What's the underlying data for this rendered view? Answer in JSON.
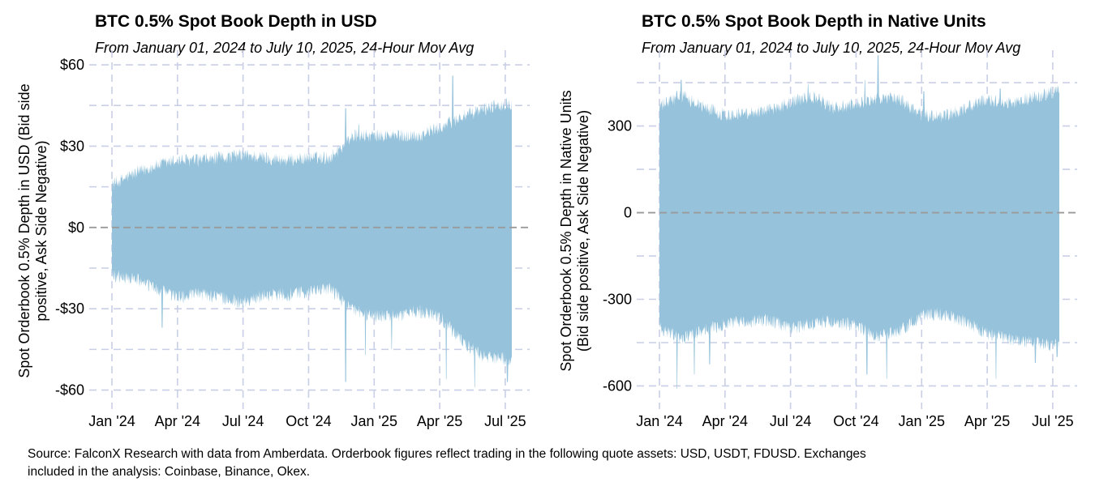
{
  "chart_data": [
    {
      "type": "area",
      "title": "BTC 0.5% Spot Book Depth in USD",
      "subtitle": "From January 01, 2024 to July 10, 2025, 24-Hour Mov Avg",
      "ylabel_line1": "Spot Orderbook 0.5% Depth in USD (Bid side",
      "ylabel_line2": "positive, Ask Side Negative)",
      "xlabel": "",
      "x_ticks": [
        "Jan '24",
        "Apr '24",
        "Jul '24",
        "Oct '24",
        "Jan '25",
        "Apr '25",
        "Jul '25"
      ],
      "y_ticks": [
        {
          "value": 60,
          "label": "$60"
        },
        {
          "value": 30,
          "label": "$30"
        },
        {
          "value": 0,
          "label": "$0"
        },
        {
          "value": -30,
          "label": "-$30"
        },
        {
          "value": -60,
          "label": "-$60"
        }
      ],
      "ylim": [
        -67,
        63
      ],
      "x_range_months": [
        0,
        18.3
      ],
      "series": [
        {
          "name": "Bid side (positive)",
          "color": "#96c3db",
          "x_month": [
            0,
            1,
            2,
            3,
            4,
            5,
            6,
            7,
            8,
            9,
            10,
            11,
            12,
            13,
            14,
            15,
            16,
            17,
            18
          ],
          "values": [
            15,
            19,
            22,
            24,
            24,
            25,
            26,
            25,
            24,
            25,
            25,
            33,
            33,
            33,
            33,
            36,
            40,
            43,
            45
          ],
          "spikes": [
            {
              "x_month": 10.7,
              "value": 44
            },
            {
              "x_month": 11.3,
              "value": 38
            },
            {
              "x_month": 15.6,
              "value": 56
            },
            {
              "x_month": 17.5,
              "value": 46
            }
          ]
        },
        {
          "name": "Ask side (negative)",
          "color": "#96c3db",
          "x_month": [
            0,
            1,
            2,
            3,
            4,
            5,
            6,
            7,
            8,
            9,
            10,
            11,
            12,
            13,
            14,
            15,
            16,
            17,
            18
          ],
          "values": [
            -17,
            -18,
            -22,
            -25,
            -24,
            -25,
            -27,
            -24,
            -24,
            -23,
            -22,
            -30,
            -32,
            -32,
            -30,
            -32,
            -41,
            -47,
            -48
          ],
          "spikes": [
            {
              "x_month": 2.3,
              "value": -37
            },
            {
              "x_month": 10.7,
              "value": -57
            },
            {
              "x_month": 11.6,
              "value": -47
            },
            {
              "x_month": 12.8,
              "value": -45
            },
            {
              "x_month": 15.3,
              "value": -56
            },
            {
              "x_month": 16.6,
              "value": -59
            },
            {
              "x_month": 18.1,
              "value": -57
            }
          ]
        }
      ],
      "reference_line": 0,
      "grid": true
    },
    {
      "type": "area",
      "title": "BTC 0.5% Spot Book Depth in Native Units",
      "subtitle": "From January 01, 2024 to July 10, 2025, 24-Hour Mov Avg",
      "ylabel_line1": "Spot Orderbook 0.5% Depth in Native Units",
      "ylabel_line2": "(Bid side positive, Ask Side Negative)",
      "xlabel": "",
      "x_ticks": [
        "Jan '24",
        "Apr '24",
        "Jul '24",
        "Oct '24",
        "Jan '25",
        "Apr '25",
        "Jul '25"
      ],
      "y_ticks": [
        {
          "value": 300,
          "label": "300"
        },
        {
          "value": 0,
          "label": "0"
        },
        {
          "value": -300,
          "label": "-300"
        },
        {
          "value": -600,
          "label": "-600"
        }
      ],
      "ylim": [
        -680,
        540
      ],
      "x_range_months": [
        0,
        18.3
      ],
      "series": [
        {
          "name": "Bid side (positive)",
          "color": "#96c3db",
          "x_month": [
            0,
            1,
            2,
            3,
            4,
            5,
            6,
            7,
            8,
            9,
            10,
            11,
            12,
            13,
            14,
            15,
            16,
            17,
            18
          ],
          "values": [
            360,
            400,
            360,
            330,
            340,
            350,
            375,
            395,
            355,
            370,
            390,
            385,
            330,
            325,
            355,
            385,
            370,
            390,
            410
          ],
          "spikes": [
            {
              "x_month": 1.0,
              "value": 460
            },
            {
              "x_month": 6.8,
              "value": 445
            },
            {
              "x_month": 9.4,
              "value": 460
            },
            {
              "x_month": 10.0,
              "value": 545
            },
            {
              "x_month": 12.1,
              "value": 420
            },
            {
              "x_month": 15.6,
              "value": 430
            }
          ]
        },
        {
          "name": "Ask side (negative)",
          "color": "#96c3db",
          "x_month": [
            0,
            1,
            2,
            3,
            4,
            5,
            6,
            7,
            8,
            9,
            10,
            11,
            12,
            13,
            14,
            15,
            16,
            17,
            18
          ],
          "values": [
            -390,
            -430,
            -400,
            -380,
            -370,
            -365,
            -395,
            -375,
            -370,
            -385,
            -420,
            -405,
            -345,
            -345,
            -370,
            -410,
            -430,
            -440,
            -450
          ],
          "spikes": [
            {
              "x_month": 0.8,
              "value": -610
            },
            {
              "x_month": 1.6,
              "value": -560
            },
            {
              "x_month": 2.3,
              "value": -525
            },
            {
              "x_month": 9.5,
              "value": -560
            },
            {
              "x_month": 10.4,
              "value": -575
            },
            {
              "x_month": 15.4,
              "value": -575
            },
            {
              "x_month": 17.2,
              "value": -520
            },
            {
              "x_month": 18.2,
              "value": -500
            }
          ]
        }
      ],
      "reference_line": 0,
      "grid": true
    }
  ],
  "footer": {
    "line1": "Source: FalconX Research with data from Amberdata. Orderbook figures reflect trading in the following quote assets: USD, USDT, FDUSD. Exchanges",
    "line2": "included in the analysis: Coinbase, Binance, Okex."
  },
  "colors": {
    "area": "#96c3db",
    "grid": "#c9cfe6",
    "zero_line": "#9a9a9a"
  }
}
